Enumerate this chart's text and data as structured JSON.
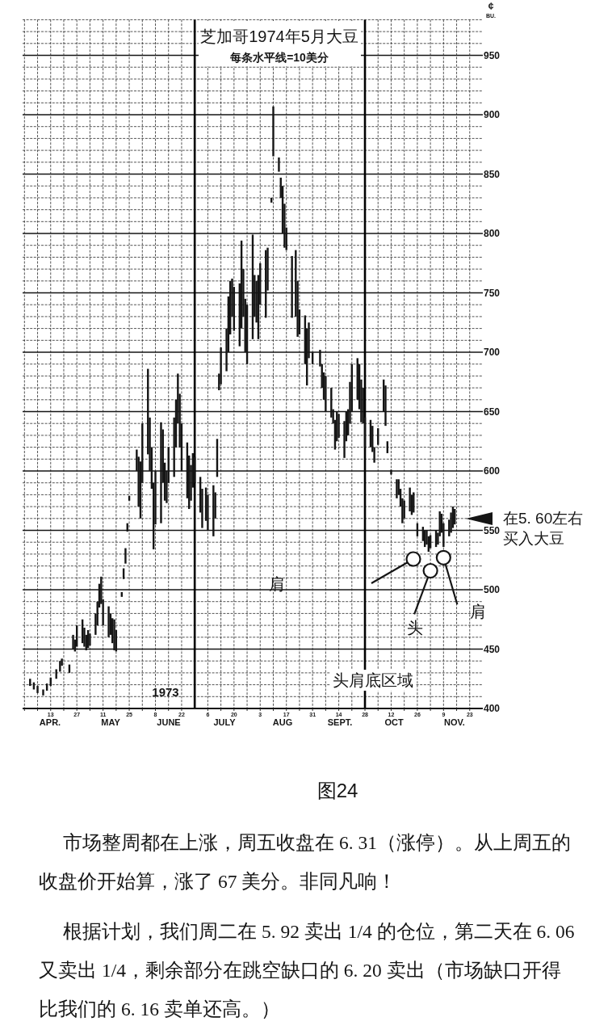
{
  "chart_data": {
    "type": "bar",
    "title": "芝加哥1974年5月大豆",
    "subtitle": "每条水平线=10美分",
    "ylabel": "¢\nBU.",
    "x": [
      "1973-04-02",
      "1973-04-04",
      "1973-04-06",
      "1973-04-09",
      "1973-04-11",
      "1973-04-13",
      "1973-04-16",
      "1973-04-18",
      "1973-04-19",
      "1973-04-23",
      "1973-04-25",
      "1973-04-26",
      "1973-04-27",
      "1973-04-30",
      "1973-05-01",
      "1973-05-02",
      "1973-05-03",
      "1973-05-04",
      "1973-05-07",
      "1973-05-08",
      "1973-05-09",
      "1973-05-10",
      "1973-05-11",
      "1973-05-14",
      "1973-05-15",
      "1973-05-16",
      "1973-05-17",
      "1973-05-18",
      "1973-05-21",
      "1973-05-22",
      "1973-05-23",
      "1973-05-24",
      "1973-05-25",
      "1973-05-29",
      "1973-05-30",
      "1973-05-31",
      "1973-06-01",
      "1973-06-04",
      "1973-06-05",
      "1973-06-06",
      "1973-06-07",
      "1973-06-08",
      "1973-06-11",
      "1973-06-12",
      "1973-06-13",
      "1973-06-14",
      "1973-06-15",
      "1973-06-18",
      "1973-06-19",
      "1973-06-20",
      "1973-06-21",
      "1973-06-22",
      "1973-06-25",
      "1973-06-26",
      "1973-06-27",
      "1973-06-28",
      "1973-06-29",
      "1973-07-02",
      "1973-07-03",
      "1973-07-05",
      "1973-07-06",
      "1973-07-09",
      "1973-07-10",
      "1973-07-11",
      "1973-07-12",
      "1973-07-13",
      "1973-07-16",
      "1973-07-17",
      "1973-07-18",
      "1973-07-19",
      "1973-07-20",
      "1973-07-23",
      "1973-07-24",
      "1973-07-25",
      "1973-07-26",
      "1973-07-27",
      "1973-07-30",
      "1973-07-31",
      "1973-08-01",
      "1973-08-02",
      "1973-08-03",
      "1973-08-06",
      "1973-08-07",
      "1973-08-09",
      "1973-08-10",
      "1973-08-13",
      "1973-08-14",
      "1973-08-15",
      "1973-08-16",
      "1973-08-17",
      "1973-08-20",
      "1973-08-22",
      "1973-08-23",
      "1973-08-24",
      "1973-08-27",
      "1973-08-28",
      "1973-08-29",
      "1973-08-31",
      "1973-09-04",
      "1973-09-05",
      "1973-09-06",
      "1973-09-07",
      "1973-09-10",
      "1973-09-11",
      "1973-09-12",
      "1973-09-13",
      "1973-09-14",
      "1973-09-17",
      "1973-09-18",
      "1973-09-19",
      "1973-09-20",
      "1973-09-21",
      "1973-09-24",
      "1973-09-25",
      "1973-09-26",
      "1973-09-27",
      "1973-09-28",
      "1973-10-01",
      "1973-10-02",
      "1973-10-03",
      "1973-10-05",
      "1973-10-08",
      "1973-10-09",
      "1973-10-10",
      "1973-10-12",
      "1973-10-15",
      "1973-10-16",
      "1973-10-17",
      "1973-10-18",
      "1973-10-19",
      "1973-10-22",
      "1973-10-23",
      "1973-10-24",
      "1973-10-26",
      "1973-10-29",
      "1973-10-30",
      "1973-10-31",
      "1973-11-01",
      "1973-11-02",
      "1973-11-05",
      "1973-11-06",
      "1973-11-07",
      "1973-11-08",
      "1973-11-09",
      "1973-11-12",
      "1973-11-13",
      "1973-11-14",
      "1973-11-15"
    ],
    "base": [
      419,
      416,
      413,
      411,
      415,
      419,
      425,
      431,
      436,
      430,
      450,
      448,
      452,
      455,
      452,
      449,
      451,
      453,
      462,
      470,
      485,
      488,
      470,
      460,
      462,
      455,
      449,
      448,
      494,
      509,
      522,
      549,
      575,
      600,
      570,
      560,
      590,
      614,
      600,
      585,
      534,
      555,
      556,
      590,
      575,
      573,
      590,
      595,
      620,
      640,
      620,
      600,
      577,
      568,
      575,
      586,
      590,
      565,
      552,
      558,
      550,
      545,
      560,
      595,
      668,
      673,
      684,
      700,
      715,
      730,
      718,
      705,
      720,
      730,
      700,
      690,
      711,
      730,
      725,
      711,
      740,
      729,
      752,
      826,
      865,
      852,
      830,
      800,
      788,
      786,
      729,
      730,
      713,
      715,
      690,
      672,
      695,
      690,
      688,
      670,
      660,
      650,
      645,
      640,
      618,
      625,
      628,
      611,
      625,
      630,
      640,
      650,
      660,
      652,
      641,
      640,
      620,
      620,
      616,
      607,
      622,
      650,
      638,
      615,
      597,
      577,
      580,
      570,
      556,
      560,
      566,
      563,
      565,
      545,
      541,
      536,
      538,
      532,
      535,
      536,
      538,
      545,
      548,
      536,
      545,
      548,
      552,
      555
    ],
    "values": [
      6,
      6,
      6,
      5,
      6,
      7,
      8,
      9,
      6,
      7,
      12,
      10,
      18,
      20,
      16,
      13,
      15,
      10,
      18,
      20,
      20,
      23,
      22,
      26,
      18,
      21,
      26,
      18,
      4,
      9,
      13,
      7,
      4,
      18,
      42,
      48,
      50,
      72,
      45,
      35,
      56,
      45,
      85,
      45,
      32,
      27,
      30,
      50,
      40,
      42,
      45,
      40,
      47,
      45,
      30,
      29,
      22,
      30,
      33,
      28,
      30,
      43,
      22,
      32,
      14,
      31,
      36,
      47,
      45,
      32,
      37,
      53,
      74,
      40,
      45,
      50,
      88,
      35,
      35,
      54,
      35,
      57,
      36,
      4,
      42,
      12,
      17,
      40,
      37,
      19,
      52,
      56,
      47,
      21,
      41,
      48,
      30,
      10,
      14,
      20,
      23,
      30,
      25,
      12,
      25,
      25,
      20,
      31,
      25,
      22,
      35,
      40,
      35,
      38,
      36,
      30,
      25,
      23,
      22,
      13,
      14,
      27,
      34,
      10,
      4,
      16,
      13,
      15,
      21,
      15,
      20,
      17,
      17,
      11,
      12,
      14,
      12,
      13,
      11,
      14,
      10,
      21,
      16,
      20,
      14,
      17,
      18,
      13
    ],
    "color": "#151515",
    "xlim": [
      "1973-03-29",
      "1973-11-30"
    ],
    "xticks": [
      {
        "value": "1973-03-30",
        "label": null
      },
      {
        "value": "1973-04-06",
        "label": null
      },
      {
        "value": "1973-04-13",
        "label": "13"
      },
      {
        "value": "1973-04-20",
        "label": null
      },
      {
        "value": "1973-04-27",
        "label": "27"
      },
      {
        "value": "1973-05-04",
        "label": null
      },
      {
        "value": "1973-05-11",
        "label": "11"
      },
      {
        "value": "1973-05-18",
        "label": null
      },
      {
        "value": "1973-05-25",
        "label": "25"
      },
      {
        "value": "1973-06-01",
        "label": null
      },
      {
        "value": "1973-06-08",
        "label": "8"
      },
      {
        "value": "1973-06-15",
        "label": null
      },
      {
        "value": "1973-06-22",
        "label": "22"
      },
      {
        "value": "1973-07-06",
        "label": "6"
      },
      {
        "value": "1973-07-13",
        "label": null
      },
      {
        "value": "1973-07-20",
        "label": "20"
      },
      {
        "value": "1973-07-27",
        "label": null
      },
      {
        "value": "1973-08-03",
        "label": "3"
      },
      {
        "value": "1973-08-10",
        "label": null
      },
      {
        "value": "1973-08-17",
        "label": "17"
      },
      {
        "value": "1973-08-24",
        "label": null
      },
      {
        "value": "1973-08-31",
        "label": "31"
      },
      {
        "value": "1973-09-07",
        "label": null
      },
      {
        "value": "1973-09-14",
        "label": "14"
      },
      {
        "value": "1973-09-21",
        "label": null
      },
      {
        "value": "1973-09-28",
        "label": "28"
      },
      {
        "value": "1973-10-05",
        "label": null
      },
      {
        "value": "1973-10-12",
        "label": "12"
      },
      {
        "value": "1973-10-19",
        "label": null
      },
      {
        "value": "1973-10-26",
        "label": "26"
      },
      {
        "value": "1973-11-02",
        "label": null
      },
      {
        "value": "1973-11-09",
        "label": "9"
      },
      {
        "value": "1973-11-16",
        "label": null
      },
      {
        "value": "1973-11-23",
        "label": "23"
      }
    ],
    "ylim": [
      400,
      980
    ],
    "yticks": [
      400,
      {
        "value": 410,
        "label": null
      },
      {
        "value": 420,
        "label": null
      },
      {
        "value": 430,
        "label": null
      },
      {
        "value": 440,
        "label": null
      },
      450,
      {
        "value": 460,
        "label": null
      },
      {
        "value": 470,
        "label": null
      },
      {
        "value": 480,
        "label": null
      },
      {
        "value": 490,
        "label": null
      },
      500,
      {
        "value": 510,
        "label": null
      },
      {
        "value": 520,
        "label": null
      },
      {
        "value": 530,
        "label": null
      },
      {
        "value": 540,
        "label": null
      },
      550,
      {
        "value": 560,
        "label": null
      },
      {
        "value": 570,
        "label": null
      },
      {
        "value": 580,
        "label": null
      },
      {
        "value": 590,
        "label": null
      },
      600,
      {
        "value": 610,
        "label": null
      },
      {
        "value": 620,
        "label": null
      },
      {
        "value": 630,
        "label": null
      },
      {
        "value": 640,
        "label": null
      },
      650,
      {
        "value": 660,
        "label": null
      },
      {
        "value": 670,
        "label": null
      },
      {
        "value": 680,
        "label": null
      },
      {
        "value": 690,
        "label": null
      },
      700,
      {
        "value": 710,
        "label": null
      },
      {
        "value": 720,
        "label": null
      },
      {
        "value": 730,
        "label": null
      },
      {
        "value": 740,
        "label": null
      },
      750,
      {
        "value": 760,
        "label": null
      },
      {
        "value": 770,
        "label": null
      },
      {
        "value": 780,
        "label": null
      },
      {
        "value": 790,
        "label": null
      },
      800,
      {
        "value": 810,
        "label": null
      },
      {
        "value": 820,
        "label": null
      },
      {
        "value": 830,
        "label": null
      },
      {
        "value": 840,
        "label": null
      },
      850,
      {
        "value": 860,
        "label": null
      },
      {
        "value": 870,
        "label": null
      },
      {
        "value": 880,
        "label": null
      },
      {
        "value": 890,
        "label": null
      },
      900,
      {
        "value": 910,
        "label": null
      },
      {
        "value": 920,
        "label": null
      },
      {
        "value": 930,
        "label": null
      },
      {
        "value": 940,
        "label": null
      },
      950,
      {
        "value": 960,
        "label": null
      },
      {
        "value": 970,
        "label": null
      },
      {
        "value": 980,
        "label": null
      }
    ],
    "grid": true,
    "ref_lines": [
      {
        "axis": "x",
        "value": "1973-06-29"
      },
      {
        "axis": "x",
        "value": "1973-09-28"
      }
    ],
    "annotations": [
      "1973",
      "APR.",
      "MAY",
      "JUNE",
      "JULY",
      "AUG",
      "SEPT.",
      "OCT",
      "NOV.",
      "在5. 60左右买入大豆",
      "肩",
      {
        "text": "头",
        "x": "1973-11-02",
        "y": 516
      },
      {
        "text": "肩",
        "x": "1973-11-09",
        "y": 527
      },
      "头肩底区域",
      "图24",
      "市场整周都在上涨，周五收盘在 6. 31（涨停）。从上周五的收盘价开始算，涨了 67 美分。非同凡响！",
      "根据计划，我们周二在 5. 92 卖出 1/4 的仓位，第二天在 6. 06 又卖出 1/4，剩余部分在跳空缺口的 6. 20 卖出（市场缺口开得比我们的 6. 16 卖单还高。）"
    ]
  }
}
